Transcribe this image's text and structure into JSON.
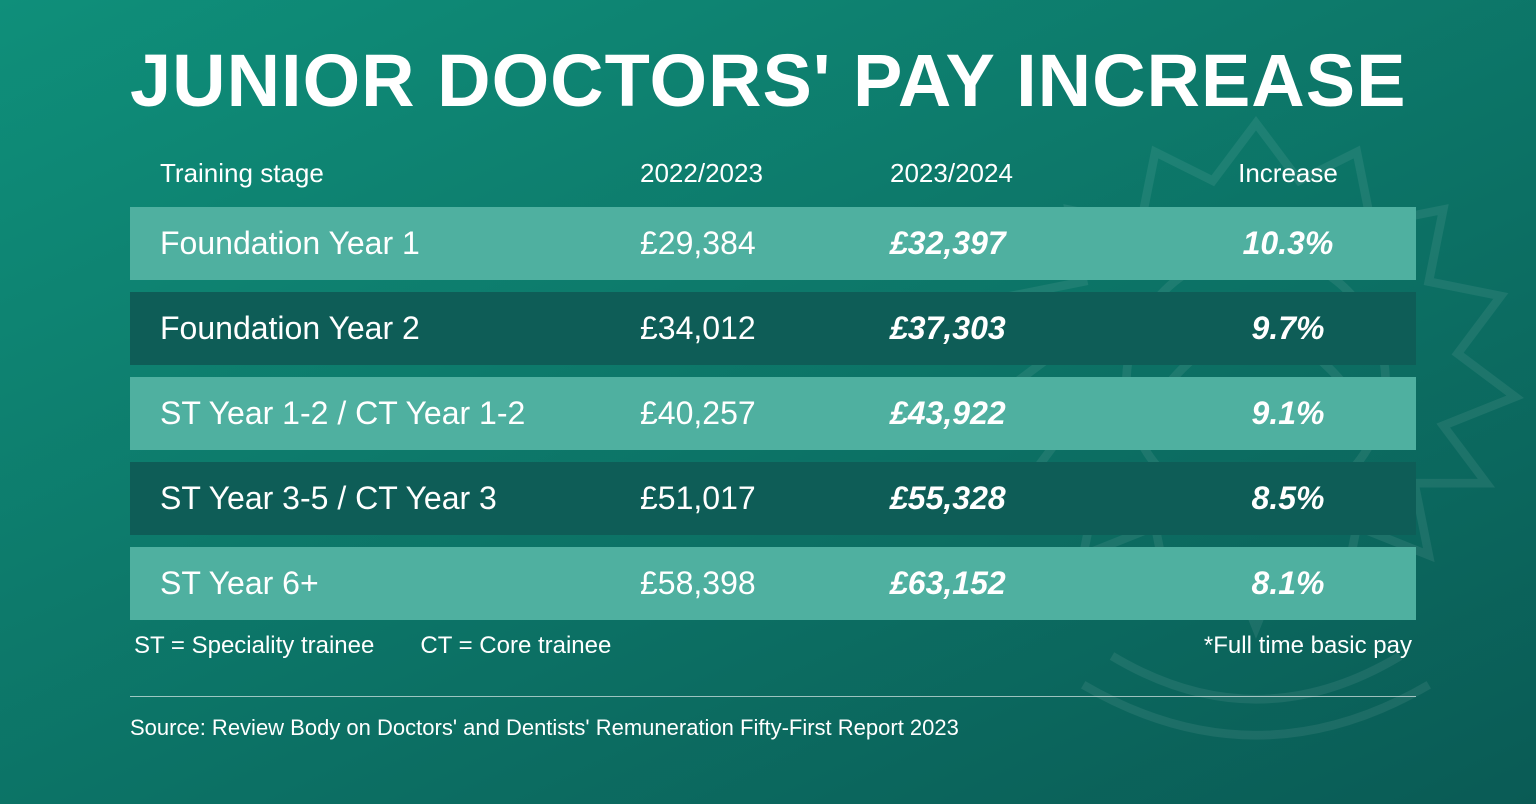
{
  "background": {
    "gradient_from": "#0f8f7a",
    "gradient_to": "#0a5b55",
    "watermark_color": "#ffffff",
    "watermark_opacity": 0.07
  },
  "title": {
    "text": "JUNIOR DOCTORS' PAY INCREASE",
    "color": "#ffffff",
    "fontsize": 74
  },
  "table": {
    "header_fontsize": 26,
    "row_fontsize": 32,
    "row_colors": {
      "light": "#4fb0a0",
      "dark": "#0e5d57"
    },
    "text_color": "#ffffff",
    "columns": [
      "Training stage",
      "2022/2023",
      "2023/2024",
      "Increase"
    ],
    "rows": [
      {
        "stage": "Foundation Year 1",
        "y22": "£29,384",
        "y23": "£32,397",
        "inc": "10.3%",
        "shade": "light"
      },
      {
        "stage": "Foundation Year 2",
        "y22": "£34,012",
        "y23": "£37,303",
        "inc": "9.7%",
        "shade": "dark"
      },
      {
        "stage": "ST Year 1-2 / CT Year 1-2",
        "y22": "£40,257",
        "y23": "£43,922",
        "inc": "9.1%",
        "shade": "light"
      },
      {
        "stage": "ST Year 3-5 / CT Year 3",
        "y22": "£51,017",
        "y23": "£55,328",
        "inc": "8.5%",
        "shade": "dark"
      },
      {
        "stage": "ST Year 6+",
        "y22": "£58,398",
        "y23": "£63,152",
        "inc": "8.1%",
        "shade": "light"
      }
    ]
  },
  "legend": {
    "fontsize": 24,
    "st": "ST = Speciality trainee",
    "ct": "CT = Core trainee",
    "note": "*Full time basic pay"
  },
  "source": {
    "fontsize": 22,
    "text": "Source: Review Body on Doctors' and Dentists' Remuneration Fifty-First Report 2023"
  }
}
